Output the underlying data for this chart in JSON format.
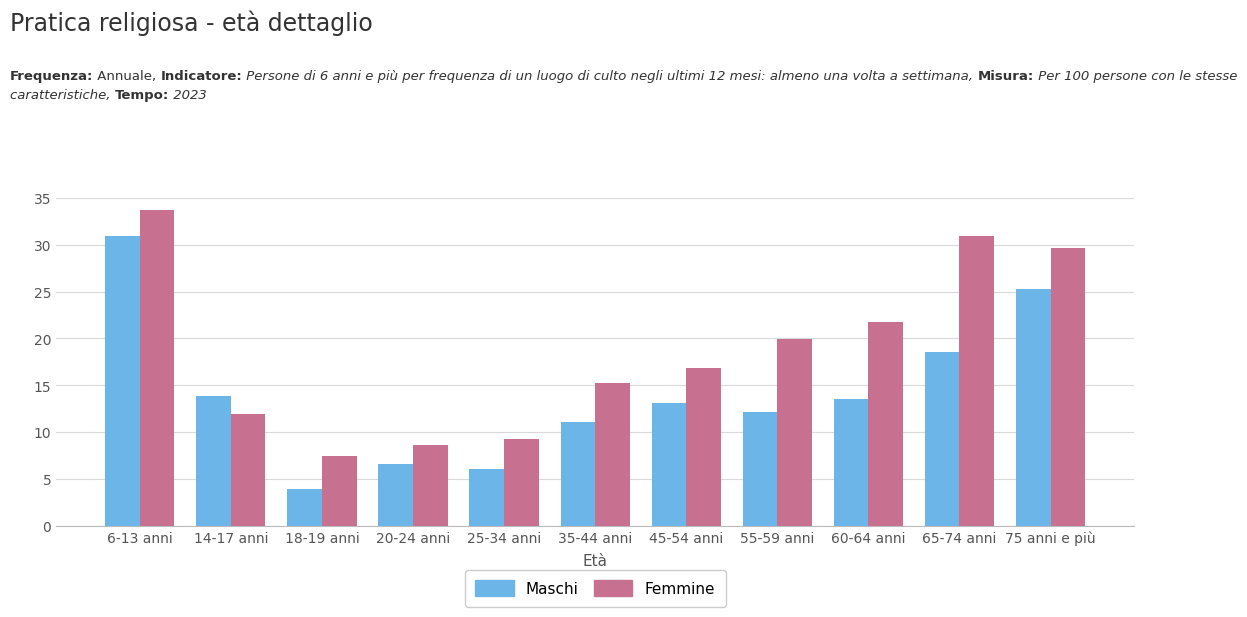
{
  "title": "Pratica religiosa - età dettaglio",
  "subtitle_line1_parts": [
    {
      "text": "Frequenza:",
      "bold": true,
      "italic": false
    },
    {
      "text": " Annuale, ",
      "bold": false,
      "italic": false
    },
    {
      "text": "Indicatore:",
      "bold": true,
      "italic": false
    },
    {
      "text": " Persone di 6 anni e più per frequenza di un luogo di culto negli ultimi 12 mesi: almeno una volta a settimana, ",
      "bold": false,
      "italic": true
    },
    {
      "text": "Misura:",
      "bold": true,
      "italic": false
    },
    {
      "text": " Per 100 persone con le stesse",
      "bold": false,
      "italic": true
    }
  ],
  "subtitle_line2_parts": [
    {
      "text": "caratteristiche, ",
      "bold": false,
      "italic": true
    },
    {
      "text": "Tempo:",
      "bold": true,
      "italic": false
    },
    {
      "text": " 2023",
      "bold": false,
      "italic": true
    }
  ],
  "categories": [
    "6-13 anni",
    "14-17 anni",
    "18-19 anni",
    "20-24 anni",
    "25-34 anni",
    "35-44 anni",
    "45-54 anni",
    "55-59 anni",
    "60-64 anni",
    "65-74 anni",
    "75 anni e più"
  ],
  "maschi": [
    30.9,
    13.9,
    3.9,
    6.6,
    6.1,
    11.1,
    13.1,
    12.2,
    13.5,
    18.6,
    25.3
  ],
  "femmine": [
    33.7,
    11.9,
    7.5,
    8.6,
    9.3,
    15.3,
    16.9,
    19.9,
    21.7,
    30.9,
    29.6
  ],
  "maschi_color": "#6bb5e8",
  "femmine_color": "#c87090",
  "xlabel": "Età",
  "ylim": [
    0,
    35
  ],
  "yticks": [
    0,
    5,
    10,
    15,
    20,
    25,
    30,
    35
  ],
  "legend_maschi": "Maschi",
  "legend_femmine": "Femmine",
  "background_color": "#ffffff",
  "grid_color": "#d9d9d9",
  "title_fontsize": 17,
  "tick_fontsize": 10,
  "xlabel_fontsize": 11,
  "bar_width": 0.38
}
